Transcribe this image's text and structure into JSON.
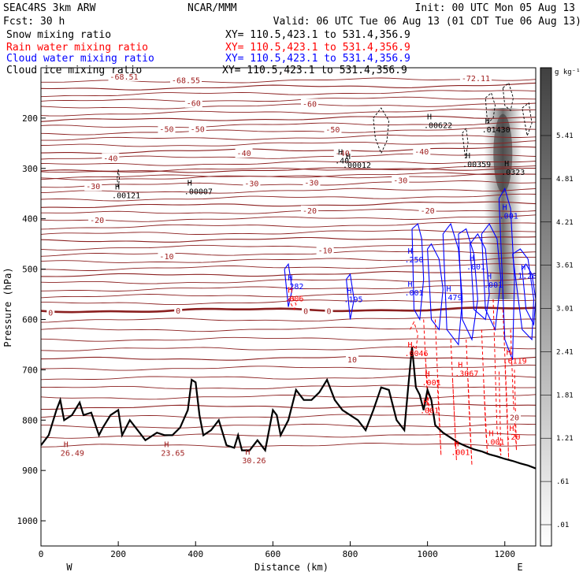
{
  "header": {
    "left": [
      "SEAC4RS  3km ARW",
      "Fcst:   30 h"
    ],
    "center": "NCAR/MMM",
    "right": [
      "Init: 00 UTC Mon 05 Aug 13",
      "Valid: 06 UTC Tue 06 Aug 13 (01 CDT Tue 06 Aug 13)"
    ]
  },
  "legend": [
    {
      "name": "Snow mixing ratio",
      "xy": "XY= 110.5,423.1 to 531.4,356.9",
      "color": "#000000"
    },
    {
      "name": "Rain water mixing ratio",
      "xy": "XY= 110.5,423.1 to 531.4,356.9",
      "color": "#ff0000"
    },
    {
      "name": "Cloud water mixing ratio",
      "xy": "XY= 110.5,423.1 to 531.4,356.9",
      "color": "#0000ff"
    },
    {
      "name": "Cloud ice mixing ratio",
      "xy": "XY= 110.5,423.1 to 531.4,356.9",
      "color": "#000000"
    }
  ],
  "colors": {
    "temperature": "#8b2020",
    "temperature_label": "#a02020",
    "terrain": "#000000",
    "rain": "#ff0000",
    "cloud": "#0000ff",
    "snow": "#000000"
  },
  "chart_data": {
    "type": "cross-section",
    "xlabel": "Distance (km)",
    "ylabel": "Pressure (hPa)",
    "xlim": [
      0,
      1280
    ],
    "ylim": [
      1050,
      100
    ],
    "x_ticks": [
      0,
      200,
      400,
      600,
      800,
      1000,
      1200
    ],
    "y_ticks": [
      200,
      300,
      400,
      500,
      600,
      700,
      800,
      900,
      1000
    ],
    "x_end_labels": [
      "W",
      "E"
    ],
    "colorbar": {
      "unit": "g kg⁻¹",
      "ticks": [
        "5.41",
        "4.81",
        "4.21",
        "3.61",
        "3.01",
        "2.41",
        "1.81",
        "1.21",
        ".61",
        ".01"
      ]
    },
    "temperature_contours": {
      "levels": [
        -70,
        -60,
        -50,
        -40,
        -30,
        -20,
        -10,
        0,
        10,
        20
      ],
      "labels": [
        {
          "text": "-72.11",
          "x": 1125,
          "p": 120
        },
        {
          "text": "-68.51",
          "x": 215,
          "p": 117
        },
        {
          "text": "-68.55",
          "x": 375,
          "p": 124
        },
        {
          "text": "-60",
          "x": 395,
          "p": 170
        },
        {
          "text": "-60",
          "x": 695,
          "p": 171
        },
        {
          "text": "-50",
          "x": 325,
          "p": 221
        },
        {
          "text": "-50",
          "x": 405,
          "p": 221
        },
        {
          "text": "-50",
          "x": 755,
          "p": 222
        },
        {
          "text": "-40",
          "x": 180,
          "p": 279
        },
        {
          "text": "-40",
          "x": 525,
          "p": 269
        },
        {
          "text": "-40",
          "x": 780,
          "p": 269
        },
        {
          "text": "-40",
          "x": 985,
          "p": 266
        },
        {
          "text": "-30",
          "x": 135,
          "p": 335
        },
        {
          "text": "-30",
          "x": 545,
          "p": 329
        },
        {
          "text": "-30",
          "x": 700,
          "p": 328
        },
        {
          "text": "-30",
          "x": 930,
          "p": 323
        },
        {
          "text": "-20",
          "x": 145,
          "p": 402
        },
        {
          "text": "-20",
          "x": 695,
          "p": 383
        },
        {
          "text": "-20",
          "x": 1000,
          "p": 383
        },
        {
          "text": "-10",
          "x": 325,
          "p": 474
        },
        {
          "text": "-10",
          "x": 735,
          "p": 462
        },
        {
          "text": "0",
          "x": 25,
          "p": 586
        },
        {
          "text": "0",
          "x": 355,
          "p": 582
        },
        {
          "text": "0",
          "x": 685,
          "p": 583
        },
        {
          "text": "0",
          "x": 745,
          "p": 583
        },
        {
          "text": "10",
          "x": 805,
          "p": 679
        },
        {
          "text": "20",
          "x": 1225,
          "p": 794
        }
      ]
    },
    "extrema_labels": [
      {
        "type": "H",
        "value": ".00121",
        "x": 208,
        "p": 348,
        "color": "#000000"
      },
      {
        "type": "H",
        "value": ".00007",
        "x": 395,
        "p": 340,
        "color": "#000000"
      },
      {
        "type": "H",
        "value": ".00012",
        "x": 805,
        "p": 288,
        "color": "#000000"
      },
      {
        "type": "H",
        "value": ".40",
        "x": 785,
        "p": 279,
        "color": "#000000"
      },
      {
        "type": "H",
        "value": ".00622",
        "x": 1015,
        "p": 209,
        "color": "#000000"
      },
      {
        "type": "H",
        "value": ".00359",
        "x": 1115,
        "p": 286,
        "color": "#000000"
      },
      {
        "type": "H",
        "value": ".01430",
        "x": 1165,
        "p": 217,
        "color": "#000000"
      },
      {
        "type": "H",
        "value": ".0323",
        "x": 1215,
        "p": 302,
        "color": "#000000"
      },
      {
        "type": "H",
        "value": ".001",
        "x": 1210,
        "p": 389,
        "color": "#0000ff"
      },
      {
        "type": "H",
        "value": ".250",
        "x": 965,
        "p": 476,
        "color": "#0000ff"
      },
      {
        "type": "H",
        "value": ".001",
        "x": 1125,
        "p": 490,
        "color": "#0000ff"
      },
      {
        "type": "H",
        "value": ".001",
        "x": 1170,
        "p": 526,
        "color": "#0000ff"
      },
      {
        "type": "H",
        "value": "1.28",
        "x": 1258,
        "p": 508,
        "color": "#0000ff"
      },
      {
        "type": "H",
        "value": ".282",
        "x": 655,
        "p": 529,
        "color": "#0000ff"
      },
      {
        "type": "H",
        "value": ".001",
        "x": 965,
        "p": 541,
        "color": "#0000ff"
      },
      {
        "type": "H",
        "value": ".479",
        "x": 1065,
        "p": 551,
        "color": "#0000ff"
      },
      {
        "type": "H",
        "value": ".195",
        "x": 808,
        "p": 555,
        "color": "#0000ff"
      },
      {
        "type": "H",
        "value": ".006",
        "x": 655,
        "p": 553,
        "color": "#ff0000"
      },
      {
        "type": "H",
        "value": ".0046",
        "x": 965,
        "p": 662,
        "color": "#ff0000"
      },
      {
        "type": "H",
        "value": ".001",
        "x": 1010,
        "p": 720,
        "color": "#ff0000"
      },
      {
        "type": "H",
        "value": ".3067",
        "x": 1095,
        "p": 702,
        "color": "#ff0000"
      },
      {
        "type": "H",
        "value": ".6119",
        "x": 1220,
        "p": 677,
        "color": "#ff0000"
      },
      {
        "type": "H",
        "value": ".001",
        "x": 1005,
        "p": 775,
        "color": "#ff0000"
      },
      {
        "type": "H",
        "value": ".001",
        "x": 1175,
        "p": 838,
        "color": "#ff0000"
      },
      {
        "type": "H",
        "value": ".001",
        "x": 1085,
        "p": 858,
        "color": "#ff0000"
      },
      {
        "type": "H",
        "value": ".20",
        "x": 1228,
        "p": 828,
        "color": "#ff0000"
      },
      {
        "type": "H",
        "value": "26.49",
        "x": 75,
        "p": 860,
        "color": "#a02020"
      },
      {
        "type": "H",
        "value": "23.65",
        "x": 335,
        "p": 860,
        "color": "#a02020"
      },
      {
        "type": "H",
        "value": "30.26",
        "x": 545,
        "p": 875,
        "color": "#a02020"
      }
    ],
    "terrain": {
      "x": [
        0,
        20,
        40,
        50,
        60,
        80,
        100,
        110,
        130,
        150,
        160,
        180,
        200,
        210,
        230,
        250,
        270,
        300,
        320,
        340,
        360,
        380,
        390,
        400,
        410,
        420,
        440,
        460,
        480,
        500,
        510,
        520,
        540,
        560,
        580,
        600,
        610,
        620,
        640,
        650,
        660,
        680,
        700,
        720,
        740,
        760,
        780,
        800,
        820,
        840,
        860,
        880,
        900,
        920,
        940,
        950,
        960,
        970,
        980,
        990,
        1000,
        1010,
        1020,
        1040,
        1060,
        1080,
        1100,
        1120,
        1140,
        1160,
        1180,
        1200,
        1220,
        1240,
        1260,
        1280
      ],
      "p": [
        850,
        830,
        780,
        760,
        800,
        790,
        765,
        790,
        785,
        830,
        815,
        790,
        780,
        830,
        800,
        820,
        840,
        825,
        830,
        830,
        815,
        780,
        720,
        725,
        790,
        830,
        820,
        800,
        850,
        855,
        830,
        860,
        860,
        840,
        860,
        780,
        790,
        830,
        800,
        770,
        740,
        760,
        760,
        745,
        720,
        760,
        780,
        790,
        800,
        820,
        780,
        735,
        740,
        800,
        820,
        735,
        655,
        735,
        750,
        780,
        740,
        760,
        810,
        825,
        835,
        845,
        852,
        858,
        862,
        868,
        872,
        877,
        881,
        886,
        890,
        896
      ]
    },
    "rain_contours": [
      {
        "x": [
          640,
          650,
          660,
          655,
          640
        ],
        "p": [
          560,
          555,
          570,
          580,
          560
        ]
      },
      {
        "x": [
          955,
          965,
          975,
          970,
          960
        ],
        "p": [
          620,
          605,
          630,
          660,
          650
        ]
      },
      {
        "x": [
          990,
          1000,
          1005,
          995
        ],
        "p": [
          600,
          760,
          790,
          680
        ]
      },
      {
        "x": [
          1020,
          1030,
          1035,
          1025
        ],
        "p": [
          600,
          780,
          870,
          720
        ]
      },
      {
        "x": [
          1060,
          1070,
          1075,
          1065
        ],
        "p": [
          640,
          800,
          880,
          720
        ]
      },
      {
        "x": [
          1100,
          1110,
          1115,
          1105
        ],
        "p": [
          640,
          820,
          890,
          720
        ]
      },
      {
        "x": [
          1140,
          1150,
          1155,
          1145
        ],
        "p": [
          620,
          810,
          870,
          720
        ]
      },
      {
        "x": [
          1170,
          1180,
          1190,
          1185
        ],
        "p": [
          560,
          820,
          870,
          700
        ]
      },
      {
        "x": [
          1195,
          1205,
          1210,
          1200
        ],
        "p": [
          580,
          760,
          880,
          680
        ]
      },
      {
        "x": [
          1215,
          1222,
          1230,
          1225
        ],
        "p": [
          620,
          760,
          860,
          700
        ]
      }
    ],
    "cloud_contours": [
      {
        "x": [
          630,
          640,
          650,
          640,
          630
        ],
        "p": [
          500,
          490,
          540,
          575,
          500
        ]
      },
      {
        "x": [
          790,
          800,
          810,
          800,
          790
        ],
        "p": [
          520,
          510,
          560,
          600,
          520
        ]
      },
      {
        "x": [
          960,
          975,
          985,
          990,
          980,
          965,
          960
        ],
        "p": [
          420,
          410,
          440,
          520,
          600,
          580,
          420
        ]
      },
      {
        "x": [
          1000,
          1010,
          1030,
          1040,
          1030,
          1010,
          1000
        ],
        "p": [
          460,
          450,
          480,
          540,
          620,
          600,
          460
        ]
      },
      {
        "x": [
          1040,
          1060,
          1080,
          1090,
          1080,
          1050,
          1040
        ],
        "p": [
          430,
          410,
          460,
          560,
          650,
          620,
          430
        ]
      },
      {
        "x": [
          1080,
          1100,
          1120,
          1130,
          1115,
          1090,
          1080
        ],
        "p": [
          430,
          420,
          470,
          560,
          640,
          600,
          430
        ]
      },
      {
        "x": [
          1110,
          1130,
          1150,
          1160,
          1150,
          1120,
          1110
        ],
        "p": [
          450,
          430,
          460,
          550,
          600,
          580,
          450
        ]
      },
      {
        "x": [
          1140,
          1160,
          1180,
          1190,
          1175,
          1150,
          1140
        ],
        "p": [
          430,
          410,
          440,
          520,
          620,
          580,
          430
        ]
      },
      {
        "x": [
          1185,
          1200,
          1215,
          1225,
          1220,
          1200,
          1185
        ],
        "p": [
          360,
          340,
          380,
          520,
          680,
          640,
          360
        ]
      },
      {
        "x": [
          1220,
          1240,
          1260,
          1275,
          1270,
          1245,
          1220
        ],
        "p": [
          470,
          460,
          480,
          560,
          640,
          620,
          470
        ]
      },
      {
        "x": [
          1245,
          1255,
          1270,
          1280,
          1275,
          1255,
          1245
        ],
        "p": [
          500,
          490,
          510,
          560,
          610,
          580,
          500
        ]
      }
    ],
    "snow_contours": [
      {
        "x": [
          200,
          203,
          200,
          197,
          200
        ],
        "p": [
          302,
          320,
          338,
          320,
          302
        ]
      },
      {
        "x": [
          860,
          880,
          900,
          895,
          880,
          865,
          860
        ],
        "p": [
          200,
          180,
          205,
          245,
          270,
          240,
          200
        ]
      },
      {
        "x": [
          1090,
          1100,
          1105,
          1098,
          1090
        ],
        "p": [
          230,
          220,
          250,
          280,
          230
        ]
      },
      {
        "x": [
          1150,
          1165,
          1175,
          1170,
          1155,
          1150
        ],
        "p": [
          160,
          150,
          175,
          200,
          210,
          160
        ]
      },
      {
        "x": [
          1195,
          1210,
          1222,
          1215,
          1200,
          1195
        ],
        "p": [
          140,
          130,
          160,
          185,
          175,
          140
        ]
      },
      {
        "x": [
          1245,
          1262,
          1270,
          1258,
          1245
        ],
        "p": [
          180,
          170,
          210,
          235,
          180
        ]
      }
    ],
    "ice_shading": [
      {
        "x": 1195,
        "p_top": 180,
        "p_bottom": 560,
        "peak_p": 270,
        "value": 5.41
      }
    ]
  }
}
